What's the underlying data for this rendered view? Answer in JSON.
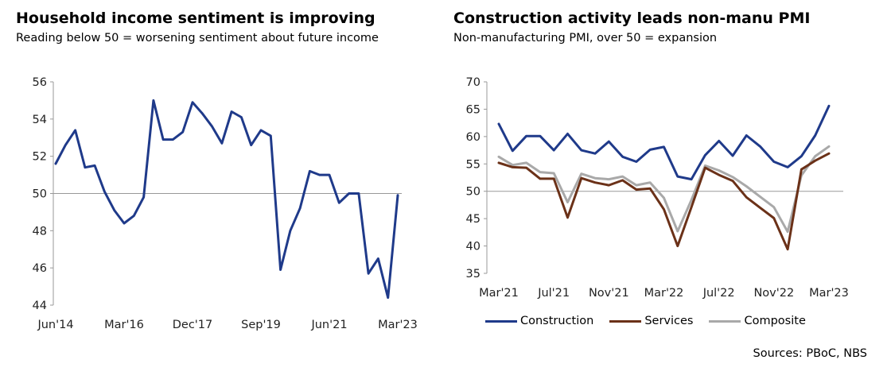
{
  "colors": {
    "navy": "#1f3a8a",
    "brown": "#6b3118",
    "gray": "#a9a9a9",
    "axis": "#999999"
  },
  "left": {
    "title": "Household income sentiment is improving",
    "subtitle": "Reading below 50 = worsening sentiment about future income"
  },
  "right": {
    "title": "Construction activity leads non-manu PMI",
    "subtitle": "Non-manufacturing PMI, over 50 = expansion",
    "source": "Sources: PBoC, NBS"
  },
  "chart_data": [
    {
      "type": "line",
      "title": "Household income sentiment is improving",
      "subtitle": "Reading below 50 = worsening sentiment about future income",
      "ylim": [
        44,
        56
      ],
      "yticks": [
        44,
        46,
        48,
        50,
        52,
        54,
        56
      ],
      "xtick_labels": [
        "Jun'14",
        "Mar'16",
        "Dec'17",
        "Sep'19",
        "Jun'21",
        "Mar'23"
      ],
      "reference_line": 50,
      "series": [
        {
          "name": "",
          "color": "navy",
          "values": [
            51.6,
            52.6,
            53.4,
            51.4,
            51.5,
            50.1,
            49.1,
            48.4,
            48.8,
            49.8,
            55.0,
            52.9,
            52.9,
            53.3,
            54.9,
            54.3,
            53.6,
            52.7,
            54.4,
            54.1,
            52.6,
            53.4,
            53.1,
            45.9,
            48.0,
            49.2,
            51.2,
            51.0,
            51.0,
            49.5,
            50.0,
            50.0,
            45.7,
            46.5,
            44.4,
            49.9
          ]
        }
      ]
    },
    {
      "type": "line",
      "title": "Construction activity leads non-manu PMI",
      "subtitle": "Non-manufacturing PMI, over 50 = expansion",
      "ylim": [
        35,
        70
      ],
      "yticks": [
        35,
        40,
        45,
        50,
        55,
        60,
        65,
        70
      ],
      "xtick_labels": [
        "Mar'21",
        "Jul'21",
        "Nov'21",
        "Mar'22",
        "Jul'22",
        "Nov'22",
        "Mar'23"
      ],
      "reference_line": 50,
      "legend_position": "bottom",
      "series": [
        {
          "name": "Construction",
          "color": "navy",
          "values": [
            62.3,
            57.4,
            60.1,
            60.1,
            57.5,
            60.5,
            57.5,
            56.9,
            59.1,
            56.3,
            55.4,
            57.6,
            58.1,
            52.7,
            52.2,
            56.6,
            59.2,
            56.5,
            60.2,
            58.2,
            55.4,
            54.4,
            56.4,
            60.2,
            65.6
          ]
        },
        {
          "name": "Services",
          "color": "brown",
          "values": [
            55.2,
            54.4,
            54.3,
            52.3,
            52.3,
            45.2,
            52.4,
            51.6,
            51.1,
            52.0,
            50.3,
            50.5,
            46.7,
            40.0,
            47.1,
            54.3,
            53.0,
            51.9,
            48.9,
            47.0,
            45.1,
            39.4,
            54.0,
            55.6,
            56.9
          ]
        },
        {
          "name": "Composite",
          "color": "gray",
          "values": [
            56.3,
            54.8,
            55.2,
            53.5,
            53.3,
            48.0,
            53.2,
            52.4,
            52.2,
            52.7,
            51.1,
            51.6,
            48.8,
            42.7,
            48.4,
            54.7,
            53.8,
            52.6,
            50.9,
            49.0,
            47.1,
            42.6,
            52.9,
            56.4,
            58.2
          ]
        }
      ]
    }
  ]
}
